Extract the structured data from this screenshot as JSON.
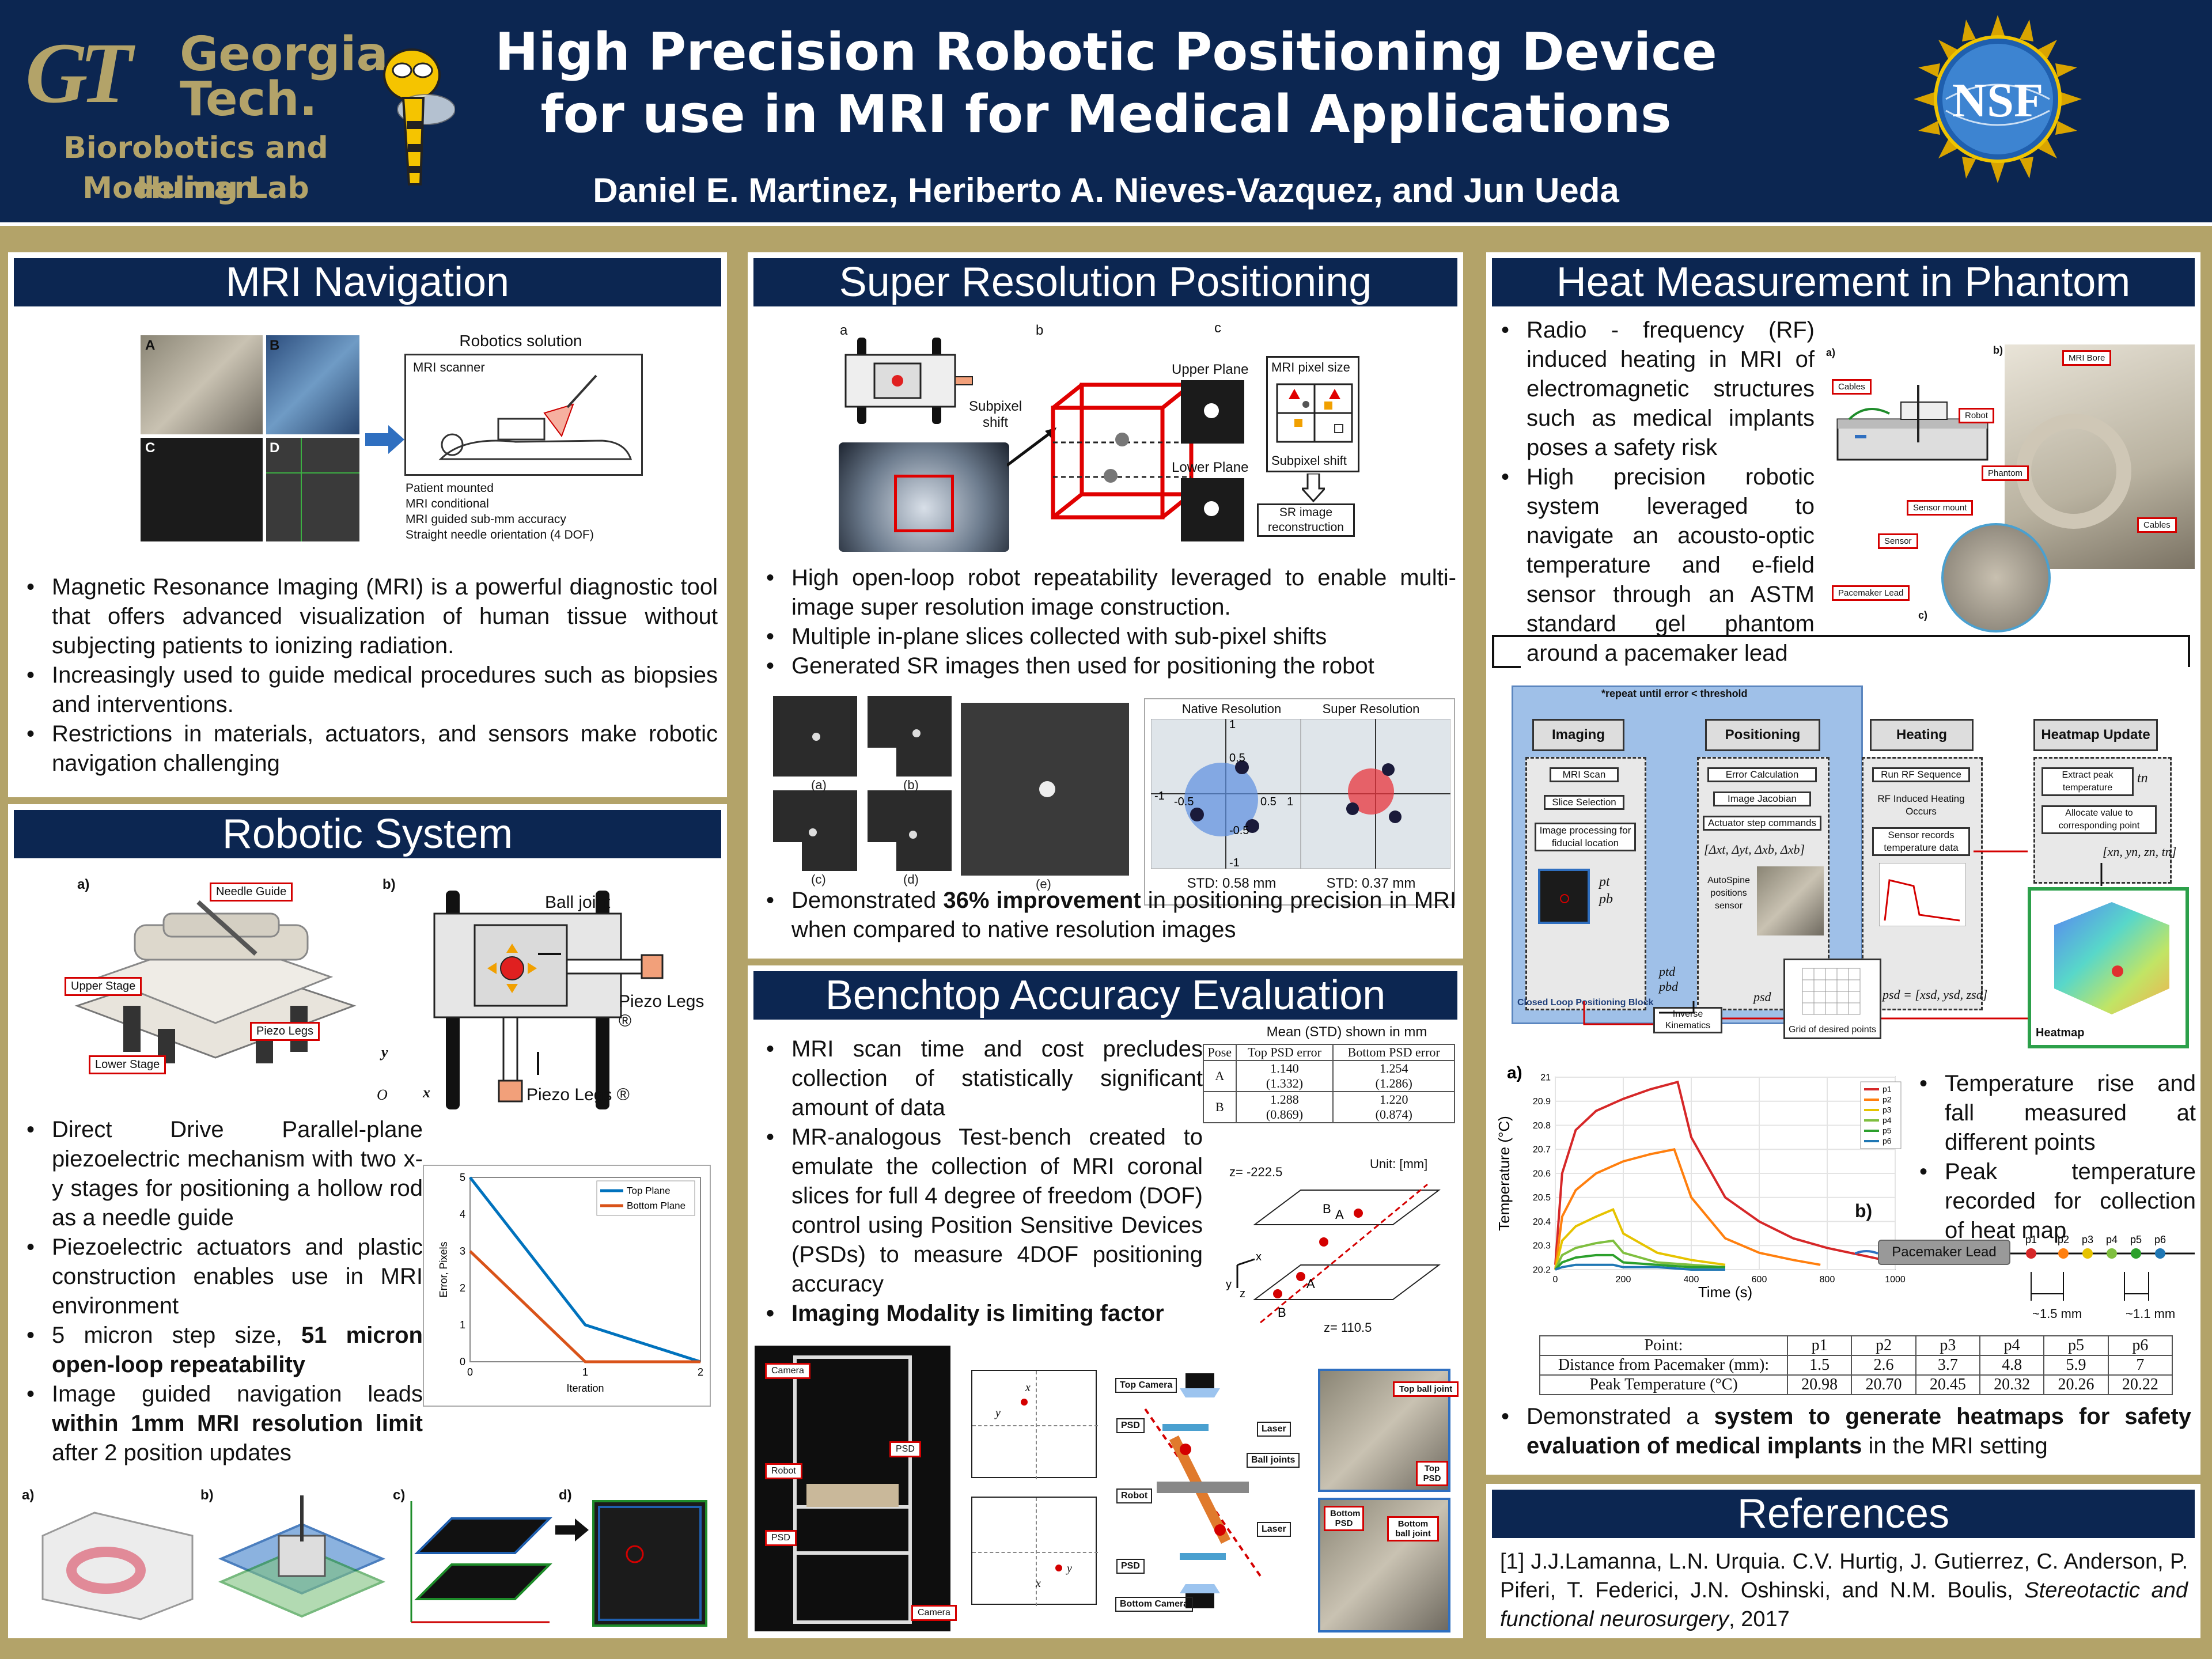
{
  "header": {
    "logo_mono": "GT",
    "logo_word1": "Georgia",
    "logo_word2": "Tech.",
    "lab_line1": "Biorobotics and Human",
    "lab_line2": "Modeling Lab",
    "title_line1": "High Precision Robotic Positioning Device",
    "title_line2": "for use in MRI for Medical Applications",
    "authors": "Daniel E. Martinez, Heriberto A. Nieves-Vazquez, and Jun Ueda",
    "nsf_text": "NSF"
  },
  "mri_nav": {
    "heading": "MRI Navigation",
    "fig_labels": [
      "A",
      "B",
      "C",
      "D"
    ],
    "robotics_solution": "Robotics solution",
    "mri_scanner": "MRI scanner",
    "solution_points": [
      "Patient mounted",
      "MRI conditional",
      "MRI guided sub-mm accuracy",
      "Straight needle orientation (4 DOF)"
    ],
    "bullets": [
      "Magnetic Resonance Imaging (MRI) is a powerful diagnostic tool that offers advanced visualization of human tissue without subjecting patients to ionizing radiation.",
      "Increasingly used to guide medical procedures such as biopsies and interventions.",
      "Restrictions in materials, actuators, and sensors make robotic navigation challenging"
    ]
  },
  "robotic_system": {
    "heading": "Robotic System",
    "fig_a": "a)",
    "fig_b": "b)",
    "labels": {
      "needle_guide": "Needle Guide",
      "upper_stage": "Upper Stage",
      "piezo_legs": "Piezo Legs",
      "lower_stage": "Lower Stage",
      "ball_joint": "Ball joint",
      "piezo_legs_r1": "Piezo Legs ®",
      "piezo_legs_r2": "Piezo Legs ®",
      "axis_y": "y",
      "axis_x": "x",
      "axis_o": "O"
    },
    "bullets": [
      {
        "pre": "Direct Drive Parallel-plane piezoelectric mechanism with two x-y stages for positioning a hollow rod as a needle guide",
        "bold": "",
        "post": ""
      },
      {
        "pre": "Piezoelectric actuators and plastic construction enables use in MRI environment",
        "bold": "",
        "post": ""
      },
      {
        "pre": "5 micron step size, ",
        "bold": "51 micron open-loop repeatability",
        "post": ""
      },
      {
        "pre": "Image guided navigation leads ",
        "bold": "within 1mm MRI resolution limit",
        "post": " after 2 position updates"
      }
    ],
    "bottom_labels": [
      "a)",
      "b)",
      "c)",
      "d)"
    ]
  },
  "super_res": {
    "heading": "Super Resolution Positioning",
    "fig_labels": [
      "a",
      "b",
      "c"
    ],
    "subpixel_shift": "Subpixel shift",
    "upper_plane": "Upper Plane",
    "lower_plane": "Lower Plane",
    "mri_pixel_size": "MRI pixel size",
    "subpixel_shift2": "Subpixel shift",
    "sr_recon": "SR image reconstruction",
    "bullets": [
      "High open-loop robot repeatability leveraged to enable multi-image super resolution image construction.",
      "Multiple in-plane slices collected with sub-pixel shifts",
      "Generated SR images then used for positioning the robot"
    ],
    "small_labels": [
      "(a)",
      "(b)",
      "(c)",
      "(d)",
      "(e)"
    ],
    "native_title": "Native Resolution",
    "super_title": "Super Resolution",
    "native_std": "STD: 0.58 mm",
    "super_std": "STD: 0.37 mm",
    "ticks": [
      "1",
      "0.5",
      "-1",
      "-0.5",
      "0.5",
      "1",
      "-0.5",
      "-1"
    ],
    "result_pre": "Demonstrated ",
    "result_bold": "36% improvement",
    "result_post": " in positioning precision in MRI when compared to native resolution images"
  },
  "benchtop": {
    "heading": "Benchtop Accuracy Evaluation",
    "bullets": [
      {
        "text": "MRI scan time and cost precludes collection of statistically significant amount of data",
        "bold": false
      },
      {
        "text": "MR-analogous Test-bench created to emulate the collection of MRI coronal slices for full 4 degree of freedom (DOF) control using Position Sensitive Devices (PSDs) to measure 4DOF positioning accuracy",
        "bold": false
      },
      {
        "text": "Imaging Modality is limiting factor",
        "bold": true
      }
    ],
    "table_caption": "Mean (STD) shown in mm",
    "table_headers": [
      "Pose",
      "Top PSD error",
      "Bottom PSD error"
    ],
    "table_rows": [
      {
        "pose": "A",
        "top": "1.140",
        "top_std": "(1.332)",
        "bottom": "1.254",
        "bottom_std": "(1.286)"
      },
      {
        "pose": "B",
        "top": "1.288",
        "top_std": "(0.869)",
        "bottom": "1.220",
        "bottom_std": "(0.874)"
      }
    ],
    "unit": "Unit: [mm]",
    "z_top": "z= -222.5",
    "z_bottom": "z= 110.5",
    "labels": {
      "camera": "Camera",
      "robot": "Robot",
      "psd": "PSD",
      "camera2": "Camera",
      "top_camera": "Top Camera",
      "bottom_camera": "Bottom Camera",
      "laser": "Laser",
      "laser2": "Laser",
      "ball_joints": "Ball joints",
      "robot2": "Robot",
      "psd2": "PSD",
      "psd3": "PSD",
      "top_ball_joint": "Top ball joint",
      "top_psd": "Top PSD",
      "bottom_psd": "Bottom PSD",
      "bottom_ball_joint": "Bottom ball joint",
      "x_tf": "x",
      "y_tf": "y",
      "x_bf": "x",
      "y_bf": "y"
    }
  },
  "heat": {
    "heading": "Heat Measurement in Phantom",
    "bullets": [
      "Radio - frequency (RF) induced heating in MRI of electromagnetic structures such as medical implants poses a safety risk",
      "High precision robotic system leveraged to navigate an acousto-optic temperature and e-field sensor through an ASTM standard gel phantom around a pacemaker lead"
    ],
    "fig_labels": [
      "a)",
      "b)",
      "c)"
    ],
    "photo_labels": [
      "MRI Bore",
      "Cables",
      "Robot",
      "Phantom",
      "Sensor mount",
      "Cables",
      "Sensor",
      "Pacemaker Lead"
    ],
    "flow": {
      "repeat": "*repeat until error < threshold",
      "imaging": "Imaging",
      "positioning": "Positioning",
      "heating": "Heating",
      "heatmap_update": "Heatmap Update",
      "mri_scan": "MRI Scan",
      "slice_selection": "Slice Selection",
      "image_processing": "Image processing for fiducial location",
      "error_calc": "Error Calculation",
      "image_jacobian": "Image Jacobian",
      "actuator_cmds": "Actuator step commands",
      "deltas": "[Δxt, Δyt, Δxb, Δxb]",
      "autospine": "AutoSpine positions sensor",
      "run_rf": "Run RF Sequence",
      "rf_heating": "RF Induced Heating Occurs",
      "sensor_records": "Sensor records temperature data",
      "extract_peak": "Extract peak temperature",
      "allocate": "Allocate value to corresponding point",
      "xn": "[xn, yn, zn, tn]",
      "tn": "tn",
      "pt": "pt",
      "pb": "pb",
      "closed_loop": "Closed Loop Positioning Block",
      "ptd": "ptd",
      "pbd": "pbd",
      "inverse_kin": "Inverse Kinematics",
      "psd": "psd",
      "psd_vec": "psd = [xsd, ysd, zsd]",
      "grid": "Grid of desired points",
      "heatmap": "Heatmap"
    },
    "right_bullets": [
      "Temperature rise and fall measured at different points",
      "Peak temperature recorded for collection of heat map"
    ],
    "fig_b": "b)",
    "pacemaker_lead": "Pacemaker Lead",
    "pacemaker_points": [
      "p1",
      "p2",
      "p3",
      "p4",
      "p5",
      "p6"
    ],
    "spacing1": "~1.5 mm",
    "spacing2": "~1.1 mm",
    "table": {
      "headers": [
        "Point:",
        "p1",
        "p2",
        "p3",
        "p4",
        "p5",
        "p6"
      ],
      "row1_label": "Distance from Pacemaker (mm):",
      "row1": [
        "1.5",
        "2.6",
        "3.7",
        "4.8",
        "5.9",
        "7"
      ],
      "row2_label": "Peak Temperature (°C)",
      "row2": [
        "20.98",
        "20.70",
        "20.45",
        "20.32",
        "20.26",
        "20.22"
      ]
    },
    "conclusion_pre": "Demonstrated a ",
    "conclusion_bold": "system to generate heatmaps for safety evaluation of medical implants",
    "conclusion_post": " in the MRI setting"
  },
  "references": {
    "heading": "References",
    "text_pre": "[1] J.J.Lamanna, L.N. Urquia. C.V. Hurtig, J. Gutierrez, C. Anderson, P. Piferi, T. Federici, J.N. Oshinski, and N.M. Boulis, ",
    "text_ital": "Stereotactic and functional neurosurgery",
    "text_post": ", 2017"
  },
  "chart_data": [
    {
      "type": "line",
      "title": "",
      "xlabel": "Iteration",
      "ylabel": "Error, Pixels",
      "xlim": [
        0,
        2
      ],
      "ylim": [
        0,
        5
      ],
      "xticks": [
        "0",
        "1",
        "2"
      ],
      "yticks": [
        "0",
        "1",
        "2",
        "3",
        "4",
        "5"
      ],
      "legend": "top-right",
      "series": [
        {
          "name": "Top Plane",
          "color": "#0072bd",
          "x": [
            0,
            1,
            2
          ],
          "y": [
            5,
            1,
            0
          ]
        },
        {
          "name": "Bottom Plane",
          "color": "#d95319",
          "x": [
            0,
            1,
            2
          ],
          "y": [
            3,
            0,
            0
          ]
        }
      ]
    },
    {
      "type": "line",
      "title": "",
      "label": "a)",
      "xlabel": "Time (s)",
      "ylabel": "Temperature (°C)",
      "xlim": [
        0,
        1000
      ],
      "ylim": [
        20.2,
        21
      ],
      "xticks": [
        "0",
        "200",
        "400",
        "600",
        "800",
        "1000"
      ],
      "yticks": [
        "20.2",
        "20.3",
        "20.4",
        "20.5",
        "20.6",
        "20.7",
        "20.8",
        "20.9",
        "21"
      ],
      "legend": "top-right",
      "series": [
        {
          "name": "p1",
          "color": "#d62728",
          "x": [
            0,
            20,
            60,
            120,
            200,
            280,
            360,
            400,
            500,
            600,
            700,
            800,
            900,
            1000
          ],
          "y": [
            20.22,
            20.6,
            20.78,
            20.86,
            20.91,
            20.95,
            20.98,
            20.75,
            20.5,
            20.4,
            20.33,
            20.29,
            20.26,
            20.23
          ]
        },
        {
          "name": "p2",
          "color": "#ff7f0e",
          "x": [
            0,
            20,
            60,
            120,
            200,
            280,
            350,
            400,
            500,
            600,
            700,
            780
          ],
          "y": [
            20.2,
            20.42,
            20.53,
            20.6,
            20.65,
            20.68,
            20.7,
            20.5,
            20.33,
            20.27,
            20.24,
            20.22
          ]
        },
        {
          "name": "p3",
          "color": "#e6c300",
          "x": [
            0,
            20,
            60,
            120,
            170,
            200,
            300,
            400,
            500
          ],
          "y": [
            20.2,
            20.32,
            20.38,
            20.42,
            20.45,
            20.35,
            20.27,
            20.24,
            20.22
          ]
        },
        {
          "name": "p4",
          "color": "#7fbf3f",
          "x": [
            0,
            20,
            60,
            120,
            170,
            200,
            300,
            400,
            500
          ],
          "y": [
            20.2,
            20.26,
            20.29,
            20.31,
            20.32,
            20.27,
            20.23,
            20.22,
            20.21
          ]
        },
        {
          "name": "p5",
          "color": "#2ca02c",
          "x": [
            0,
            20,
            60,
            120,
            170,
            200,
            300,
            400,
            500
          ],
          "y": [
            20.2,
            20.23,
            20.25,
            20.26,
            20.26,
            20.23,
            20.22,
            20.21,
            20.21
          ]
        },
        {
          "name": "p6",
          "color": "#1f77b4",
          "x": [
            0,
            20,
            60,
            120,
            170,
            200,
            300,
            400,
            500
          ],
          "y": [
            20.2,
            20.21,
            20.22,
            20.22,
            20.22,
            20.21,
            20.21,
            20.2,
            20.2
          ]
        }
      ]
    }
  ]
}
